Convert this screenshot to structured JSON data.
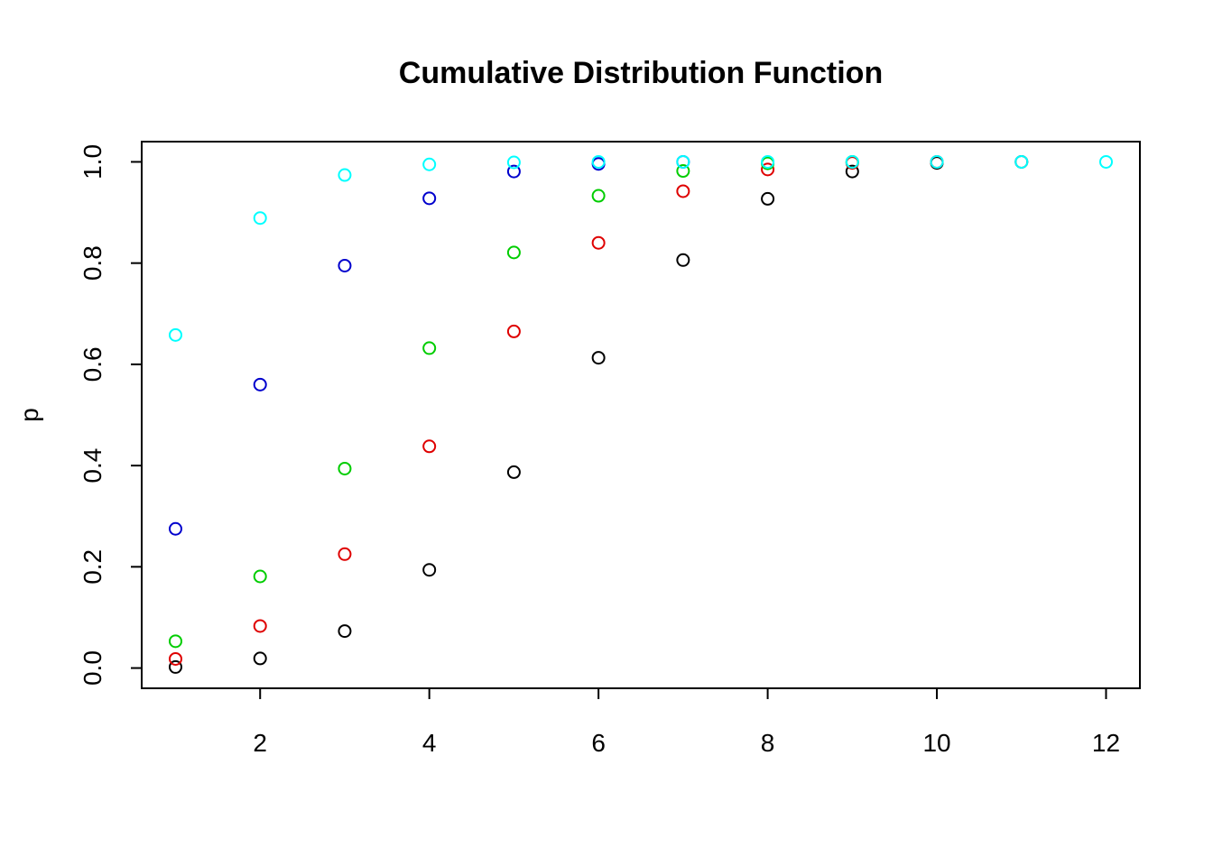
{
  "chart_data": {
    "type": "scatter",
    "title": "Cumulative Distribution Function",
    "xlabel": "",
    "ylabel": "p",
    "xlim": [
      0.6,
      12.4
    ],
    "ylim": [
      -0.04,
      1.04
    ],
    "x_ticks": [
      2,
      4,
      6,
      8,
      10,
      12
    ],
    "y_ticks": [
      0.0,
      0.2,
      0.4,
      0.6,
      0.8,
      1.0
    ],
    "x_tick_labels": [
      "2",
      "4",
      "6",
      "8",
      "10",
      "12"
    ],
    "y_tick_labels": [
      "0.0",
      "0.2",
      "0.4",
      "0.6",
      "0.8",
      "1.0"
    ],
    "grid": false,
    "series": [
      {
        "color": "#000000",
        "x": [
          1,
          2,
          3,
          4,
          5,
          6,
          7,
          8,
          9,
          10,
          11
        ],
        "values": [
          0.002,
          0.019,
          0.073,
          0.194,
          0.387,
          0.613,
          0.806,
          0.927,
          0.981,
          0.998,
          1.0
        ]
      },
      {
        "color": "#DF0000",
        "x": [
          1,
          2,
          3,
          4,
          5,
          6,
          7,
          8,
          9,
          10
        ],
        "values": [
          0.018,
          0.083,
          0.225,
          0.438,
          0.665,
          0.84,
          0.942,
          0.985,
          0.998,
          1.0
        ]
      },
      {
        "color": "#00CD00",
        "x": [
          1,
          2,
          3,
          4,
          5,
          6,
          7,
          8,
          9
        ],
        "values": [
          0.053,
          0.181,
          0.394,
          0.632,
          0.821,
          0.933,
          0.982,
          0.997,
          1.0
        ]
      },
      {
        "color": "#0000CD",
        "x": [
          1,
          2,
          3,
          4,
          5,
          6,
          7
        ],
        "values": [
          0.275,
          0.56,
          0.795,
          0.928,
          0.981,
          0.996,
          1.0
        ]
      },
      {
        "color": "#00FFFF",
        "x": [
          1,
          2,
          3,
          4,
          5,
          6,
          7,
          8,
          9,
          10,
          11,
          12
        ],
        "values": [
          0.658,
          0.889,
          0.974,
          0.995,
          0.999,
          1.0,
          1.0,
          1.0,
          1.0,
          1.0,
          1.0,
          1.0
        ]
      }
    ]
  }
}
